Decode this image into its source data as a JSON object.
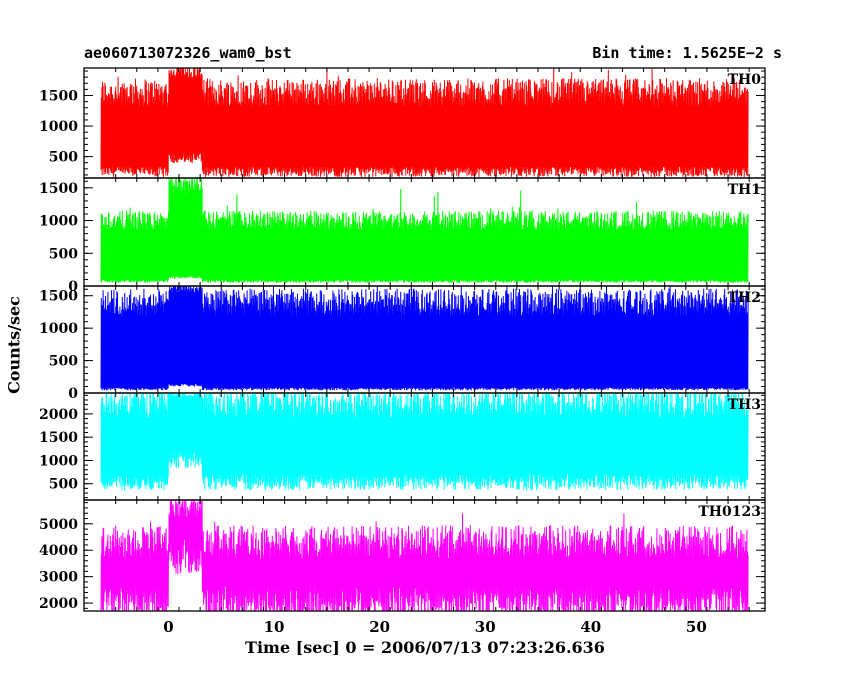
{
  "header": {
    "left_title": "ae060713072326_wam0_bst",
    "right_title": "Bin time: 1.5625E−2 s"
  },
  "chart_data": {
    "type": "line",
    "xlabel": "Time [sec] 0 = 2006/07/13 07:23:26.636",
    "ylabel": "Counts/sec",
    "xlim": [
      -8,
      56.5
    ],
    "x_ticks": [
      0,
      10,
      20,
      30,
      40,
      50
    ],
    "x_tick_labels": [
      "0",
      "10",
      "20",
      "30",
      "40",
      "50"
    ],
    "series": [
      {
        "name": "TH0",
        "color": "#ff0000",
        "ylim": [
          150,
          1950
        ],
        "y_ticks": [
          500,
          1000,
          1500
        ],
        "y_tick_labels": [
          "500",
          "1000",
          "1500"
        ],
        "baseline": 900,
        "low_envelope": 280,
        "high_envelope": 1550,
        "burst_peak": 1950
      },
      {
        "name": "TH1",
        "color": "#00ff00",
        "ylim": [
          0,
          1650
        ],
        "y_ticks": [
          0,
          500,
          1000,
          1500
        ],
        "y_tick_labels": [
          "0",
          "500",
          "1000",
          "1500"
        ],
        "baseline": 500,
        "low_envelope": 80,
        "high_envelope": 1000,
        "burst_peak": 1650
      },
      {
        "name": "TH2",
        "color": "#0000ff",
        "ylim": [
          0,
          1650
        ],
        "y_ticks": [
          0,
          500,
          1000,
          1500
        ],
        "y_tick_labels": [
          "0",
          "500",
          "1000",
          "1500"
        ],
        "baseline": 650,
        "low_envelope": 70,
        "high_envelope": 1400,
        "burst_peak": 1650
      },
      {
        "name": "TH3",
        "color": "#00ffff",
        "ylim": [
          150,
          2450
        ],
        "y_ticks": [
          500,
          1000,
          1500,
          2000
        ],
        "y_tick_labels": [
          "500",
          "1000",
          "1500",
          "2000"
        ],
        "baseline": 1350,
        "low_envelope": 600,
        "high_envelope": 2250,
        "burst_peak": 2450
      },
      {
        "name": "TH0123",
        "color": "#ff00ff",
        "ylim": [
          1700,
          5900
        ],
        "y_ticks": [
          2000,
          3000,
          4000,
          5000
        ],
        "y_tick_labels": [
          "2000",
          "3000",
          "4000",
          "5000"
        ],
        "baseline": 3200,
        "low_envelope": 2200,
        "high_envelope": 4300,
        "burst_peak": 5900
      }
    ]
  }
}
